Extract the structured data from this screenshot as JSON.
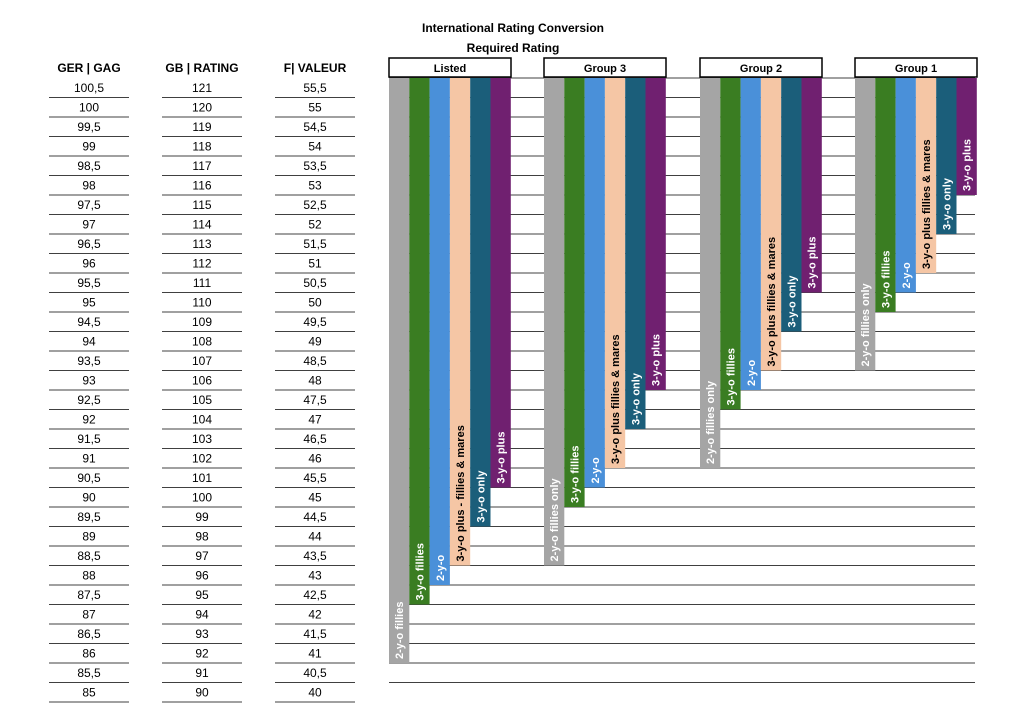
{
  "title": "International Rating Conversion",
  "subtitle": "Required Rating",
  "columns": {
    "ger": "GER | GAG",
    "gb": "GB | RATING",
    "fr": "F| VALEUR"
  },
  "colors": {
    "2-y-o fillies": "#a5a5a5",
    "3-y-o fillies": "#3a7d22",
    "2-y-o": "#4a90d9",
    "3-y-o plus fillies & mares": "#f5c6a5",
    "3-y-o only": "#1b5e7a",
    "3-y-o plus": "#702070"
  },
  "chart_data": {
    "type": "bar",
    "title": "International Rating Conversion",
    "subtitle": "Required Rating",
    "table": {
      "headers": [
        "GER | GAG",
        "GB | RATING",
        "F| VALEUR"
      ],
      "rows": [
        [
          "100,5",
          "121",
          "55,5"
        ],
        [
          "100",
          "120",
          "55"
        ],
        [
          "99,5",
          "119",
          "54,5"
        ],
        [
          "99",
          "118",
          "54"
        ],
        [
          "98,5",
          "117",
          "53,5"
        ],
        [
          "98",
          "116",
          "53"
        ],
        [
          "97,5",
          "115",
          "52,5"
        ],
        [
          "97",
          "114",
          "52"
        ],
        [
          "96,5",
          "113",
          "51,5"
        ],
        [
          "96",
          "112",
          "51"
        ],
        [
          "95,5",
          "111",
          "50,5"
        ],
        [
          "95",
          "110",
          "50"
        ],
        [
          "94,5",
          "109",
          "49,5"
        ],
        [
          "94",
          "108",
          "49"
        ],
        [
          "93,5",
          "107",
          "48,5"
        ],
        [
          "93",
          "106",
          "48"
        ],
        [
          "92,5",
          "105",
          "47,5"
        ],
        [
          "92",
          "104",
          "47"
        ],
        [
          "91,5",
          "103",
          "46,5"
        ],
        [
          "91",
          "102",
          "46"
        ],
        [
          "90,5",
          "101",
          "45,5"
        ],
        [
          "90",
          "100",
          "45"
        ],
        [
          "89,5",
          "99",
          "44,5"
        ],
        [
          "89",
          "98",
          "44"
        ],
        [
          "88,5",
          "97",
          "43,5"
        ],
        [
          "88",
          "96",
          "43"
        ],
        [
          "87,5",
          "95",
          "42,5"
        ],
        [
          "87",
          "94",
          "42"
        ],
        [
          "86,5",
          "93",
          "41,5"
        ],
        [
          "86",
          "92",
          "41"
        ],
        [
          "85,5",
          "91",
          "40,5"
        ],
        [
          "85",
          "90",
          "40"
        ]
      ]
    },
    "y_unit": "GB | RATING",
    "ylim": [
      90,
      121
    ],
    "groups": [
      {
        "name": "Listed",
        "bars": [
          {
            "label": "2-y-o fillies",
            "value": 91
          },
          {
            "label": "3-y-o fillies",
            "value": 94
          },
          {
            "label": "2-y-o",
            "value": 95
          },
          {
            "label": "3-y-o plus - fillies & mares",
            "value": 96
          },
          {
            "label": "3-y-o only",
            "value": 98
          },
          {
            "label": "3-y-o plus",
            "value": 100
          }
        ]
      },
      {
        "name": "Group 3",
        "bars": [
          {
            "label": "2-y-o fillies only",
            "value": 96
          },
          {
            "label": "3-y-o fillies",
            "value": 99
          },
          {
            "label": "2-y-o",
            "value": 100
          },
          {
            "label": "3-y-o plus fillies & mares",
            "value": 101
          },
          {
            "label": "3-y-o only",
            "value": 103
          },
          {
            "label": "3-y-o plus",
            "value": 105
          }
        ]
      },
      {
        "name": "Group 2",
        "bars": [
          {
            "label": "2-y-o fillies only",
            "value": 101
          },
          {
            "label": "3-y-o fillies",
            "value": 104
          },
          {
            "label": "2-y-o",
            "value": 105
          },
          {
            "label": "3-y-o plus fillies & mares",
            "value": 106
          },
          {
            "label": "3-y-o only",
            "value": 108
          },
          {
            "label": "3-y-o plus",
            "value": 110
          }
        ]
      },
      {
        "name": "Group 1",
        "bars": [
          {
            "label": "2-y-o fillies only",
            "value": 106
          },
          {
            "label": "3-y-o fillies",
            "value": 109
          },
          {
            "label": "2-y-o",
            "value": 110
          },
          {
            "label": "3-y-o plus fillies & mares",
            "value": 111
          },
          {
            "label": "3-y-o only",
            "value": 113
          },
          {
            "label": "3-y-o plus",
            "value": 115
          }
        ]
      }
    ]
  }
}
